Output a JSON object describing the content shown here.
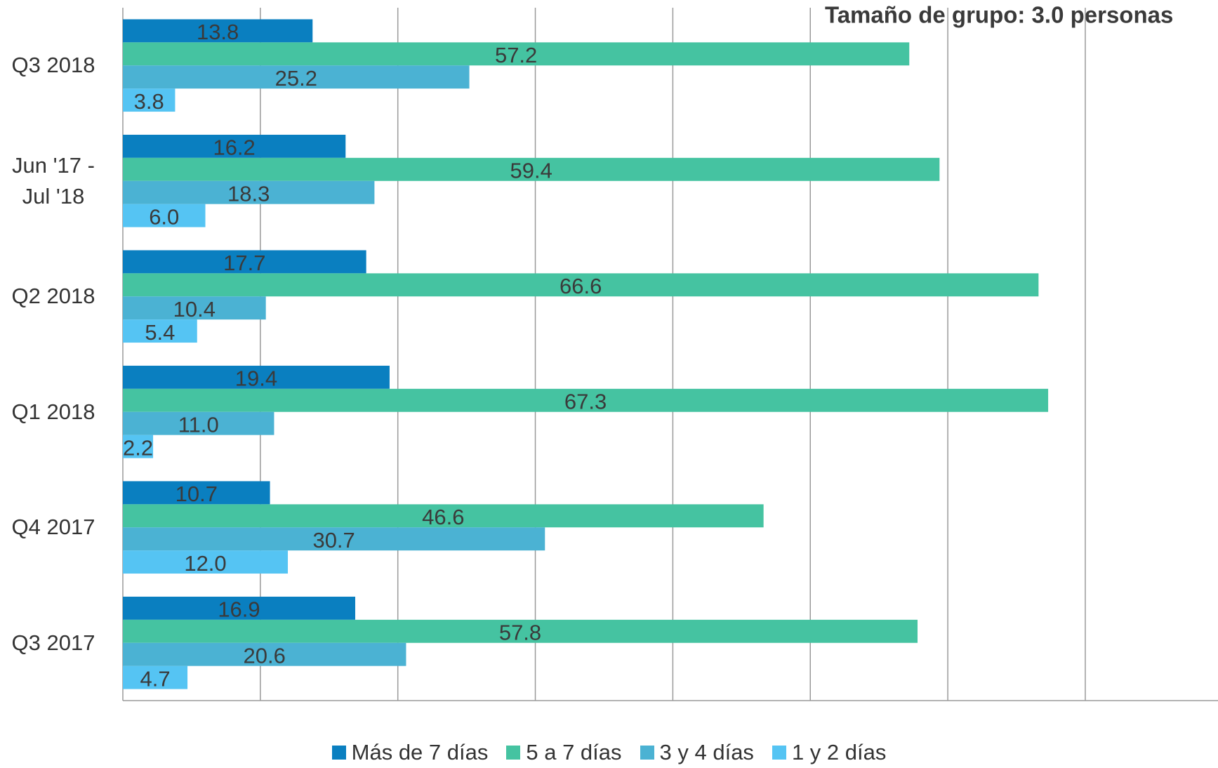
{
  "chart_data": {
    "type": "barh",
    "title": "Tamaño de grupo: 3.0 personas",
    "categories": [
      "Q3 2018",
      "Jun '17 - Jul '18",
      "Q2 2018",
      "Q1 2018",
      "Q4 2017",
      "Q3 2017"
    ],
    "series": [
      {
        "name": "Más de 7 días",
        "color": "#0a7fc0",
        "values": [
          13.8,
          16.2,
          17.7,
          19.4,
          10.7,
          16.9
        ],
        "value_labels": [
          "13.8",
          "16.2",
          "17.7",
          "19.4",
          "10.7",
          "16.9"
        ]
      },
      {
        "name": "5 a 7 días",
        "color": "#45c3a1",
        "values": [
          57.2,
          59.4,
          66.6,
          67.3,
          46.6,
          57.8
        ],
        "value_labels": [
          "57.2",
          "59.4",
          "66.6",
          "67.3",
          "46.6",
          "57.8"
        ]
      },
      {
        "name": "3 y 4 días",
        "color": "#4bb2d3",
        "values": [
          25.2,
          18.3,
          10.4,
          11.0,
          30.7,
          20.6
        ],
        "value_labels": [
          "25.2",
          "18.3",
          "10.4",
          "11.0",
          "30.7",
          "20.6"
        ]
      },
      {
        "name": "1 y 2 días",
        "color": "#55c4f3",
        "values": [
          3.8,
          6.0,
          5.4,
          2.2,
          12.0,
          4.7
        ],
        "value_labels": [
          "3.8",
          "6.0",
          "5.4",
          "2.2",
          "12.0",
          "4.7"
        ]
      }
    ],
    "xlim": [
      0,
      80
    ],
    "xticks": [
      0,
      10,
      20,
      30,
      40,
      50,
      60,
      70,
      80
    ],
    "grid": true,
    "legend": "bottom"
  }
}
